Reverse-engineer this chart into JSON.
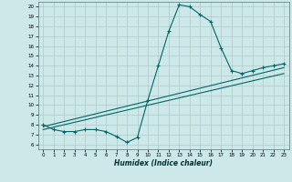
{
  "xlabel": "Humidex (Indice chaleur)",
  "ylabel": "",
  "bg_color": "#cce8e8",
  "grid_color": "#b0c8c8",
  "line_color": "#006666",
  "xlim": [
    -0.5,
    23.5
  ],
  "ylim": [
    5.5,
    20.5
  ],
  "yticks": [
    6,
    7,
    8,
    9,
    10,
    11,
    12,
    13,
    14,
    15,
    16,
    17,
    18,
    19,
    20
  ],
  "xticks": [
    0,
    1,
    2,
    3,
    4,
    5,
    6,
    7,
    8,
    9,
    10,
    11,
    12,
    13,
    14,
    15,
    16,
    17,
    18,
    19,
    20,
    21,
    22,
    23
  ],
  "main_x": [
    0,
    1,
    2,
    3,
    4,
    5,
    6,
    7,
    8,
    9,
    10,
    11,
    12,
    13,
    14,
    15,
    16,
    17,
    18,
    19,
    20,
    21,
    22,
    23
  ],
  "main_y": [
    8.0,
    7.5,
    7.3,
    7.3,
    7.5,
    7.5,
    7.3,
    6.8,
    6.2,
    6.7,
    10.5,
    14.0,
    17.5,
    20.2,
    20.0,
    19.2,
    18.5,
    15.8,
    13.5,
    13.2,
    13.5,
    13.8,
    14.0,
    14.2
  ],
  "line2_x": [
    0,
    23
  ],
  "line2_y": [
    7.8,
    13.8
  ],
  "line3_x": [
    0,
    23
  ],
  "line3_y": [
    7.5,
    13.2
  ]
}
